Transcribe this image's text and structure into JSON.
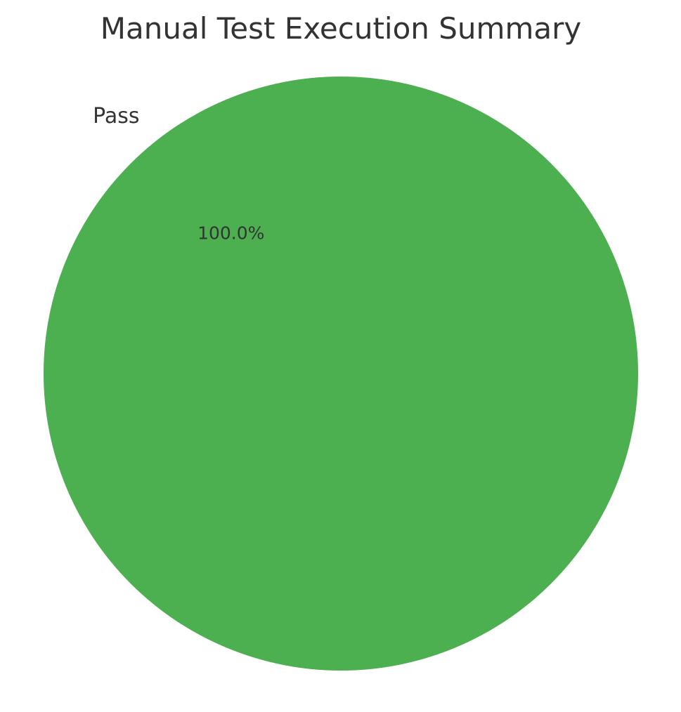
{
  "chart_data": {
    "type": "pie",
    "title": "Manual Test Execution Summary",
    "slices": [
      {
        "label": "Pass",
        "value": 100.0,
        "percent_label": "100.0%",
        "color": "#4caf50"
      }
    ]
  }
}
